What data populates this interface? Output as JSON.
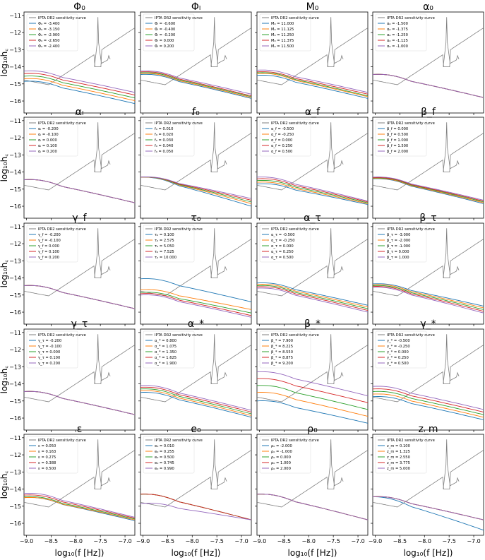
{
  "figure": {
    "ylabel": "log₁₀h꜀",
    "xlabel": "log₁₀(f [Hz])",
    "x_ticks": [
      "−9.0",
      "−8.5",
      "−8.0",
      "−7.5",
      "−7.0"
    ],
    "y_ticks": [
      "−11",
      "−12",
      "−13",
      "−14",
      "−15",
      "−16"
    ],
    "sensitivity_label": "IPTA DR2 sensitivity curve",
    "series_colors": [
      "#1f77b4",
      "#ff7f0e",
      "#2ca02c",
      "#d62728",
      "#9467bd"
    ],
    "sensitivity_color": "#7f7f7f"
  },
  "chart_data": [
    {
      "type": "line",
      "title": "Φ₀",
      "xlim": [
        -9.05,
        -6.8
      ],
      "ylim": [
        -16.7,
        -10.8
      ],
      "legend_position": "top-left",
      "legend": [
        "Φ₀ = -3.400",
        "Φ₀ = -3.150",
        "Φ₀ = -2.900",
        "Φ₀ = -2.650",
        "Φ₀ = -2.400"
      ],
      "y_at_x_min": [
        -14.85,
        -14.7,
        -14.55,
        -14.4,
        -14.25
      ],
      "y_at_x_max": [
        -16.15,
        -15.98,
        -15.82,
        -15.65,
        -15.5
      ]
    },
    {
      "type": "line",
      "title": "Φₗ",
      "xlim": [
        -9.05,
        -6.8
      ],
      "ylim": [
        -16.7,
        -10.8
      ],
      "legend_position": "top-left",
      "legend": [
        "Φₗ = -0.600",
        "Φₗ = -0.400",
        "Φₗ = -0.200",
        "Φₗ = 0.000",
        "Φₗ = 0.200"
      ],
      "y_at_x_min": [
        -14.45,
        -14.4,
        -14.35,
        -14.3,
        -14.25
      ],
      "y_at_x_max": [
        -15.85,
        -15.8,
        -15.75,
        -15.7,
        -15.6
      ]
    },
    {
      "type": "line",
      "title": "M₀",
      "xlim": [
        -9.05,
        -6.8
      ],
      "ylim": [
        -16.7,
        -10.8
      ],
      "legend_position": "top-left",
      "legend": [
        "M₀ = 11.000",
        "M₀ = 11.125",
        "M₀ = 11.250",
        "M₀ = 11.375",
        "M₀ = 11.500"
      ],
      "y_at_x_min": [
        -14.5,
        -14.4,
        -14.35,
        -14.3,
        -14.2
      ],
      "y_at_x_max": [
        -15.85,
        -15.75,
        -15.7,
        -15.6,
        -15.5
      ]
    },
    {
      "type": "line",
      "title": "α₀",
      "xlim": [
        -9.05,
        -6.8
      ],
      "ylim": [
        -16.7,
        -10.8
      ],
      "legend_position": "top-left",
      "legend": [
        "α₀ = -1.500",
        "α₀ = -1.375",
        "α₀ = -1.250",
        "α₀ = -1.125",
        "α₀ = -1.000"
      ],
      "y_at_x_min": [
        -14.45,
        -14.45,
        -14.45,
        -14.45,
        -14.45
      ],
      "y_at_x_max": [
        -15.8,
        -15.8,
        -15.8,
        -15.8,
        -15.8
      ]
    },
    {
      "type": "line",
      "title": "αₗ",
      "xlim": [
        -9.05,
        -6.8
      ],
      "ylim": [
        -16.7,
        -10.8
      ],
      "legend_position": "top-left",
      "legend": [
        "αₗ = -0.200",
        "αₗ = -0.100",
        "αₗ = 0.000",
        "αₗ = 0.100",
        "αₗ = 0.200"
      ],
      "y_at_x_min": [
        -14.45,
        -14.45,
        -14.45,
        -14.45,
        -14.45
      ],
      "y_at_x_max": [
        -15.8,
        -15.8,
        -15.8,
        -15.8,
        -15.8
      ]
    },
    {
      "type": "line",
      "title": "f₀",
      "xlim": [
        -9.05,
        -6.8
      ],
      "ylim": [
        -16.7,
        -10.8
      ],
      "legend_position": "top-left",
      "legend": [
        "f₀ = 0.010",
        "f₀ = 0.020",
        "f₀ = 0.030",
        "f₀ = 0.040",
        "f₀ = 0.050"
      ],
      "y_at_x_min": [
        -14.3,
        -14.3,
        -14.3,
        -14.3,
        -14.3
      ],
      "y_at_x_max": [
        -16.0,
        -15.85,
        -15.75,
        -15.65,
        -15.55
      ]
    },
    {
      "type": "line",
      "title": "α_f",
      "xlim": [
        -9.05,
        -6.8
      ],
      "ylim": [
        -16.7,
        -10.8
      ],
      "legend_position": "top-left",
      "legend": [
        "α_f = -0.500",
        "α_f = -0.250",
        "α_f = 0.000",
        "α_f = 0.250",
        "α_f = 0.500"
      ],
      "y_at_x_min": [
        -14.7,
        -14.6,
        -14.5,
        -14.4,
        -14.3
      ],
      "y_at_x_max": [
        -15.9,
        -15.85,
        -15.8,
        -15.75,
        -15.7
      ]
    },
    {
      "type": "line",
      "title": "β_f",
      "xlim": [
        -9.05,
        -6.8
      ],
      "ylim": [
        -16.7,
        -10.8
      ],
      "legend_position": "top-left",
      "legend": [
        "β_f = 0.000",
        "β_f = 0.500",
        "β_f = 1.000",
        "β_f = 1.500",
        "β_f = 2.000"
      ],
      "y_at_x_min": [
        -14.4,
        -14.38,
        -14.35,
        -14.33,
        -14.3
      ],
      "y_at_x_max": [
        -15.85,
        -15.8,
        -15.75,
        -15.7,
        -15.65
      ]
    },
    {
      "type": "line",
      "title": "γ_f",
      "xlim": [
        -9.05,
        -6.8
      ],
      "ylim": [
        -16.7,
        -10.8
      ],
      "legend_position": "top-left",
      "legend": [
        "γ_f = -0.200",
        "γ_f = -0.100",
        "γ_f = 0.000",
        "γ_f = 0.100",
        "γ_f = 0.200"
      ],
      "y_at_x_min": [
        -14.45,
        -14.45,
        -14.45,
        -14.45,
        -14.45
      ],
      "y_at_x_max": [
        -15.8,
        -15.8,
        -15.8,
        -15.8,
        -15.8
      ]
    },
    {
      "type": "line",
      "title": "τ₀",
      "xlim": [
        -9.05,
        -6.8
      ],
      "ylim": [
        -16.7,
        -10.8
      ],
      "legend_position": "top-left",
      "legend": [
        "τ₀ = 0.100",
        "τ₀ = 2.575",
        "τ₀ = 5.050",
        "τ₀ = 7.525",
        "τ₀ = 10.000"
      ],
      "y_at_x_min": [
        -14.05,
        -14.7,
        -14.85,
        -14.92,
        -15.0
      ],
      "y_at_x_max": [
        -15.4,
        -15.85,
        -16.05,
        -16.2,
        -16.3
      ]
    },
    {
      "type": "line",
      "title": "α_τ",
      "xlim": [
        -9.05,
        -6.8
      ],
      "ylim": [
        -16.7,
        -10.8
      ],
      "legend_position": "top-left",
      "legend": [
        "α_τ = -0.500",
        "α_τ = -0.250",
        "α_τ = 0.000",
        "α_τ = 0.250",
        "α_τ = 0.500"
      ],
      "y_at_x_min": [
        -14.3,
        -14.38,
        -14.45,
        -14.52,
        -14.6
      ],
      "y_at_x_max": [
        -15.6,
        -15.7,
        -15.8,
        -15.9,
        -16.0
      ]
    },
    {
      "type": "line",
      "title": "β_τ",
      "xlim": [
        -9.05,
        -6.8
      ],
      "ylim": [
        -16.7,
        -10.8
      ],
      "legend_position": "top-left",
      "legend": [
        "β_τ = -3.000",
        "β_τ = -2.000",
        "β_τ = -1.000",
        "β_τ = 0.000",
        "β_τ = 1.000"
      ],
      "y_at_x_min": [
        -14.35,
        -14.4,
        -14.45,
        -14.5,
        -14.55
      ],
      "y_at_x_max": [
        -15.65,
        -15.75,
        -15.85,
        -15.95,
        -16.05
      ]
    },
    {
      "type": "line",
      "title": "γ_τ",
      "xlim": [
        -9.05,
        -6.8
      ],
      "ylim": [
        -16.7,
        -10.8
      ],
      "legend_position": "top-left",
      "legend": [
        "γ_τ = -0.200",
        "γ_τ = -0.100",
        "γ_τ = 0.000",
        "γ_τ = 0.100",
        "γ_τ = 0.200"
      ],
      "y_at_x_min": [
        -14.45,
        -14.45,
        -14.45,
        -14.45,
        -14.45
      ],
      "y_at_x_max": [
        -15.8,
        -15.8,
        -15.8,
        -15.8,
        -15.8
      ]
    },
    {
      "type": "line",
      "title": "α_*",
      "xlim": [
        -9.05,
        -6.8
      ],
      "ylim": [
        -16.7,
        -10.8
      ],
      "legend_position": "top-left",
      "legend": [
        "α_* = 0.800",
        "α_* = 1.075",
        "α_* = 1.350",
        "α_* = 1.625",
        "α_* = 1.900"
      ],
      "y_at_x_min": [
        -14.5,
        -14.4,
        -14.3,
        -14.2,
        -14.1
      ],
      "y_at_x_max": [
        -15.95,
        -15.85,
        -15.75,
        -15.65,
        -15.55
      ]
    },
    {
      "type": "line",
      "title": "β_*",
      "xlim": [
        -9.05,
        -6.8
      ],
      "ylim": [
        -16.7,
        -10.8
      ],
      "legend_position": "top-left",
      "legend": [
        "β_* = 7.900",
        "β_* = 8.225",
        "β_* = 8.550",
        "β_* = 8.875",
        "β_* = 9.200"
      ],
      "y_at_x_min": [
        -15.0,
        -14.5,
        -14.1,
        -13.7,
        -13.3
      ],
      "y_at_x_max": [
        -16.3,
        -15.9,
        -15.5,
        -15.1,
        -14.7
      ]
    },
    {
      "type": "line",
      "title": "γ_*",
      "xlim": [
        -9.05,
        -6.8
      ],
      "ylim": [
        -16.7,
        -10.8
      ],
      "legend_position": "top-left",
      "legend": [
        "γ_* = -0.500",
        "γ_* = -0.250",
        "γ_* = 0.000",
        "γ_* = 0.250",
        "γ_* = 0.500"
      ],
      "y_at_x_min": [
        -14.75,
        -14.6,
        -14.45,
        -14.3,
        -14.15
      ],
      "y_at_x_max": [
        -16.1,
        -15.95,
        -15.8,
        -15.65,
        -15.5
      ]
    },
    {
      "type": "line",
      "title": "ε",
      "xlim": [
        -9.05,
        -6.8
      ],
      "ylim": [
        -16.7,
        -10.8
      ],
      "legend_position": "top-left",
      "legend": [
        "ε = 0.050",
        "ε = 0.163",
        "ε = 0.275",
        "ε = 0.388",
        "ε = 0.500"
      ],
      "y_at_x_min": [
        -14.5,
        -14.5,
        -14.45,
        -14.35,
        -14.25
      ],
      "y_at_x_max": [
        -15.85,
        -15.8,
        -15.75,
        -15.7,
        -15.65
      ]
    },
    {
      "type": "line",
      "title": "e₀",
      "xlim": [
        -9.05,
        -6.8
      ],
      "ylim": [
        -16.7,
        -10.8
      ],
      "legend_position": "top-left",
      "legend": [
        "e₀ = 0.010",
        "e₀ = 0.255",
        "e₀ = 0.500",
        "e₀ = 0.745",
        "e₀ = 0.990"
      ],
      "y_at_x_min": [
        -14.3,
        -14.3,
        -14.3,
        -14.3,
        -14.85
      ],
      "y_at_x_max": [
        -15.8,
        -15.8,
        -15.8,
        -15.8,
        -15.8
      ]
    },
    {
      "type": "line",
      "title": "ρ₀",
      "xlim": [
        -9.05,
        -6.8
      ],
      "ylim": [
        -16.7,
        -10.8
      ],
      "legend_position": "top-left",
      "legend": [
        "ρ₀ = -2.000",
        "ρ₀ = -1.000",
        "ρ₀ = 0.000",
        "ρ₀ = 1.000",
        "ρ₀ = 2.000"
      ],
      "y_at_x_min": [
        -14.3,
        -14.3,
        -14.3,
        -14.3,
        -14.3
      ],
      "y_at_x_max": [
        -15.8,
        -15.8,
        -15.8,
        -15.8,
        -15.8
      ]
    },
    {
      "type": "line",
      "title": "z_m",
      "xlim": [
        -9.05,
        -6.8
      ],
      "ylim": [
        -16.7,
        -10.8
      ],
      "legend_position": "top-left",
      "legend": [
        "z_m = 0.100",
        "z_m = 1.325",
        "z_m = 2.550",
        "z_m = 3.775",
        "z_m = 5.000"
      ],
      "y_at_x_min": [
        -14.45,
        -14.45,
        -14.45,
        -14.45,
        -14.45
      ],
      "y_at_x_max": [
        -16.4,
        -15.8,
        -15.8,
        -15.8,
        -15.8
      ]
    }
  ]
}
